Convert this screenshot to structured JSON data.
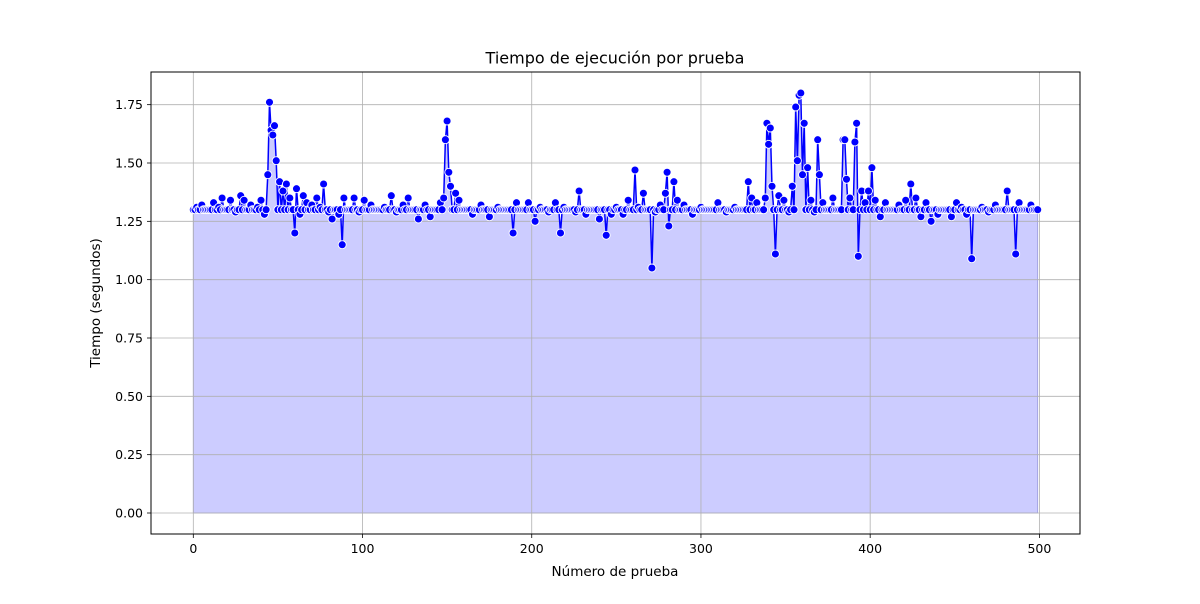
{
  "chart_data": {
    "type": "line",
    "title": "Tiempo de ejecución por prueba",
    "xlabel": "Número de prueba",
    "ylabel": "Tiempo (segundos)",
    "xlim": [
      -25,
      524
    ],
    "ylim": [
      -0.09,
      1.89
    ],
    "xticks": [
      0,
      100,
      200,
      300,
      400,
      500
    ],
    "xtick_labels": [
      "0",
      "100",
      "200",
      "300",
      "400",
      "500"
    ],
    "yticks": [
      0.0,
      0.25,
      0.5,
      0.75,
      1.0,
      1.25,
      1.5,
      1.75
    ],
    "ytick_labels": [
      "0.00",
      "0.25",
      "0.50",
      "0.75",
      "1.00",
      "1.25",
      "1.50",
      "1.75"
    ],
    "grid": true,
    "line_color": "#0000ff",
    "marker_edge_color": "#ffffff",
    "fill_color": "#ccccff",
    "fill_edge_color": "#9999dd",
    "baseline": 1.3,
    "series": [
      {
        "points": [
          [
            2,
            1.31
          ],
          [
            5,
            1.32
          ],
          [
            8,
            1.3
          ],
          [
            12,
            1.33
          ],
          [
            15,
            1.31
          ],
          [
            17,
            1.35
          ],
          [
            20,
            1.3
          ],
          [
            22,
            1.34
          ],
          [
            25,
            1.29
          ],
          [
            28,
            1.36
          ],
          [
            30,
            1.34
          ],
          [
            34,
            1.32
          ],
          [
            38,
            1.31
          ],
          [
            40,
            1.34
          ],
          [
            42,
            1.28
          ],
          [
            44,
            1.45
          ],
          [
            45,
            1.76
          ],
          [
            46,
            1.64
          ],
          [
            47,
            1.62
          ],
          [
            48,
            1.66
          ],
          [
            49,
            1.51
          ],
          [
            51,
            1.42
          ],
          [
            53,
            1.38
          ],
          [
            55,
            1.41
          ],
          [
            57,
            1.35
          ],
          [
            58,
            1.3
          ],
          [
            60,
            1.2
          ],
          [
            61,
            1.39
          ],
          [
            63,
            1.28
          ],
          [
            65,
            1.36
          ],
          [
            67,
            1.33
          ],
          [
            70,
            1.32
          ],
          [
            73,
            1.35
          ],
          [
            75,
            1.31
          ],
          [
            77,
            1.41
          ],
          [
            80,
            1.29
          ],
          [
            82,
            1.26
          ],
          [
            84,
            1.3
          ],
          [
            86,
            1.28
          ],
          [
            88,
            1.15
          ],
          [
            89,
            1.35
          ],
          [
            92,
            1.3
          ],
          [
            95,
            1.35
          ],
          [
            98,
            1.29
          ],
          [
            101,
            1.34
          ],
          [
            105,
            1.32
          ],
          [
            110,
            1.3
          ],
          [
            113,
            1.31
          ],
          [
            117,
            1.36
          ],
          [
            120,
            1.29
          ],
          [
            124,
            1.32
          ],
          [
            127,
            1.35
          ],
          [
            130,
            1.3
          ],
          [
            133,
            1.26
          ],
          [
            137,
            1.32
          ],
          [
            140,
            1.27
          ],
          [
            143,
            1.3
          ],
          [
            146,
            1.33
          ],
          [
            148,
            1.35
          ],
          [
            149,
            1.6
          ],
          [
            150,
            1.68
          ],
          [
            151,
            1.46
          ],
          [
            152,
            1.4
          ],
          [
            155,
            1.37
          ],
          [
            157,
            1.34
          ],
          [
            160,
            1.3
          ],
          [
            165,
            1.28
          ],
          [
            170,
            1.32
          ],
          [
            175,
            1.27
          ],
          [
            180,
            1.31
          ],
          [
            185,
            1.3
          ],
          [
            189,
            1.2
          ],
          [
            191,
            1.33
          ],
          [
            195,
            1.3
          ],
          [
            198,
            1.33
          ],
          [
            202,
            1.25
          ],
          [
            205,
            1.31
          ],
          [
            210,
            1.29
          ],
          [
            214,
            1.33
          ],
          [
            217,
            1.2
          ],
          [
            219,
            1.31
          ],
          [
            223,
            1.3
          ],
          [
            226,
            1.29
          ],
          [
            228,
            1.38
          ],
          [
            232,
            1.28
          ],
          [
            236,
            1.3
          ],
          [
            240,
            1.26
          ],
          [
            244,
            1.19
          ],
          [
            247,
            1.28
          ],
          [
            250,
            1.31
          ],
          [
            254,
            1.28
          ],
          [
            257,
            1.34
          ],
          [
            260,
            1.3
          ],
          [
            261,
            1.47
          ],
          [
            263,
            1.31
          ],
          [
            266,
            1.37
          ],
          [
            269,
            1.3
          ],
          [
            271,
            1.05
          ],
          [
            273,
            1.29
          ],
          [
            276,
            1.32
          ],
          [
            279,
            1.37
          ],
          [
            280,
            1.46
          ],
          [
            281,
            1.23
          ],
          [
            284,
            1.42
          ],
          [
            286,
            1.34
          ],
          [
            290,
            1.32
          ],
          [
            295,
            1.28
          ],
          [
            300,
            1.31
          ],
          [
            305,
            1.3
          ],
          [
            310,
            1.33
          ],
          [
            315,
            1.29
          ],
          [
            320,
            1.31
          ],
          [
            325,
            1.3
          ],
          [
            328,
            1.42
          ],
          [
            330,
            1.35
          ],
          [
            333,
            1.33
          ],
          [
            336,
            1.3
          ],
          [
            338,
            1.35
          ],
          [
            339,
            1.67
          ],
          [
            340,
            1.58
          ],
          [
            341,
            1.65
          ],
          [
            342,
            1.4
          ],
          [
            344,
            1.11
          ],
          [
            346,
            1.36
          ],
          [
            349,
            1.34
          ],
          [
            352,
            1.29
          ],
          [
            354,
            1.4
          ],
          [
            356,
            1.74
          ],
          [
            357,
            1.51
          ],
          [
            358,
            1.79
          ],
          [
            359,
            1.8
          ],
          [
            360,
            1.45
          ],
          [
            361,
            1.67
          ],
          [
            363,
            1.48
          ],
          [
            365,
            1.34
          ],
          [
            367,
            1.29
          ],
          [
            369,
            1.6
          ],
          [
            370,
            1.45
          ],
          [
            372,
            1.33
          ],
          [
            375,
            1.3
          ],
          [
            378,
            1.35
          ],
          [
            381,
            1.3
          ],
          [
            384,
            1.6
          ],
          [
            385,
            1.6
          ],
          [
            386,
            1.43
          ],
          [
            388,
            1.35
          ],
          [
            391,
            1.59
          ],
          [
            392,
            1.67
          ],
          [
            393,
            1.1
          ],
          [
            395,
            1.38
          ],
          [
            397,
            1.33
          ],
          [
            399,
            1.38
          ],
          [
            401,
            1.48
          ],
          [
            403,
            1.34
          ],
          [
            406,
            1.27
          ],
          [
            409,
            1.33
          ],
          [
            413,
            1.3
          ],
          [
            417,
            1.32
          ],
          [
            421,
            1.34
          ],
          [
            424,
            1.41
          ],
          [
            427,
            1.35
          ],
          [
            430,
            1.27
          ],
          [
            433,
            1.33
          ],
          [
            436,
            1.25
          ],
          [
            440,
            1.28
          ],
          [
            444,
            1.3
          ],
          [
            448,
            1.27
          ],
          [
            451,
            1.33
          ],
          [
            454,
            1.31
          ],
          [
            457,
            1.28
          ],
          [
            460,
            1.09
          ],
          [
            462,
            1.3
          ],
          [
            466,
            1.31
          ],
          [
            470,
            1.29
          ],
          [
            474,
            1.32
          ],
          [
            478,
            1.3
          ],
          [
            481,
            1.38
          ],
          [
            484,
            1.3
          ],
          [
            486,
            1.11
          ],
          [
            488,
            1.33
          ],
          [
            491,
            1.3
          ],
          [
            495,
            1.32
          ],
          [
            498,
            1.3
          ]
        ]
      }
    ]
  }
}
